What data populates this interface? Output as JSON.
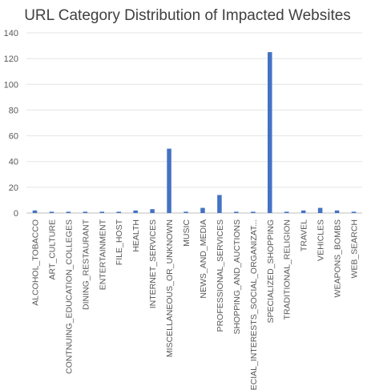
{
  "chart_data": {
    "type": "bar",
    "title": "URL Category Distribution of Impacted Websites",
    "xlabel": "",
    "ylabel": "",
    "ylim": [
      0,
      140
    ],
    "yticks": [
      0,
      20,
      40,
      60,
      80,
      100,
      120,
      140
    ],
    "grid": true,
    "legend": "none",
    "bar_color": "#4472c4",
    "categories": [
      "ALCOHOL_TOBACCO",
      "ART_CULTURE",
      "CONTNUING_EDUCATION_COLLEGES",
      "DINING_RESTAURANT",
      "ENTERTAINMENT",
      "FILE_HOST",
      "HEALTH",
      "INTERNET_SERVICES",
      "MISCELLANEOUS_OR_UNKNOWN",
      "MUSIC",
      "NEWS_AND_MEDIA",
      "PROFESSIONAL_SERVICES",
      "SHOPPING_AND_AUCTIONS",
      "SPECIAL_INTERESTS_SOCIAL_ORGANIZAT...",
      "SPECIALIZED_SHOPPING",
      "TRADITIONAL_RELIGION",
      "TRAVEL",
      "VEHICLES",
      "WEAPONS_BOMBS",
      "WEB_SEARCH"
    ],
    "values": [
      2,
      1,
      1,
      1,
      1,
      1,
      2,
      3,
      50,
      1,
      4,
      14,
      1,
      1,
      125,
      1,
      2,
      4,
      2,
      1
    ]
  }
}
